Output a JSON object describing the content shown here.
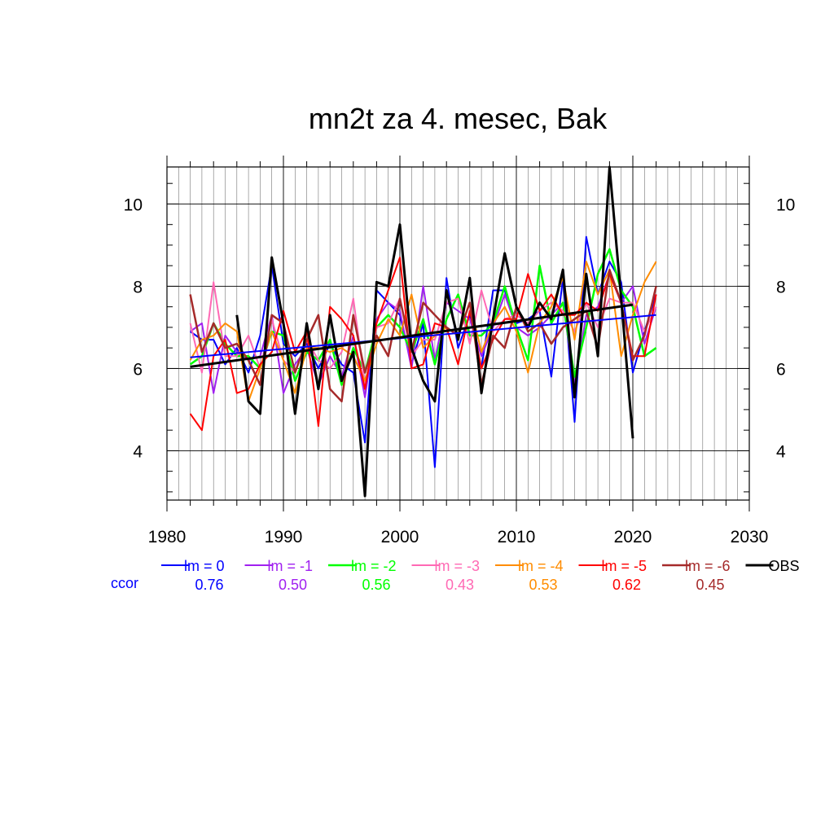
{
  "chart_data": {
    "type": "line",
    "title": "mn2t za 4. mesec, Bak",
    "xlabel": "",
    "ylabel": "",
    "xlim": [
      1980,
      2030
    ],
    "ylim": [
      2.8,
      10.9
    ],
    "x_ticks": [
      1980,
      1990,
      2000,
      2010,
      2020,
      2030
    ],
    "y_ticks": [
      4,
      6,
      8,
      10
    ],
    "grid": true,
    "x": [
      1982,
      1983,
      1984,
      1985,
      1986,
      1987,
      1988,
      1989,
      1990,
      1991,
      1992,
      1993,
      1994,
      1995,
      1996,
      1997,
      1998,
      1999,
      2000,
      2001,
      2002,
      2003,
      2004,
      2005,
      2006,
      2007,
      2008,
      2009,
      2010,
      2011,
      2012,
      2013,
      2014,
      2015,
      2016,
      2017,
      2018,
      2019,
      2020,
      2021,
      2022
    ],
    "series": [
      {
        "name": "lm = 0",
        "color": "#0000ff",
        "width": 2,
        "values": [
          6.9,
          6.7,
          6.7,
          6.1,
          6.5,
          5.9,
          6.8,
          8.5,
          6.6,
          6.3,
          6.6,
          6.0,
          6.6,
          6.1,
          5.9,
          4.2,
          7.9,
          7.6,
          7.3,
          6.1,
          7.1,
          3.6,
          8.2,
          6.5,
          7.3,
          6.0,
          7.9,
          7.9,
          7.1,
          7.2,
          7.4,
          5.8,
          8.2,
          4.7,
          9.2,
          7.8,
          8.6,
          8.1,
          5.9,
          6.9,
          7.8
        ]
      },
      {
        "name": "lm = -1",
        "color": "#a020f0",
        "width": 2,
        "values": [
          6.9,
          7.1,
          5.4,
          6.8,
          6.4,
          6.2,
          6.3,
          7.3,
          5.4,
          6.1,
          6.5,
          5.6,
          6.3,
          5.8,
          6.8,
          5.3,
          7.2,
          7.6,
          7.4,
          6.0,
          8.0,
          6.2,
          7.6,
          7.4,
          7.2,
          6.3,
          7.0,
          7.8,
          7.0,
          6.8,
          7.0,
          7.3,
          7.6,
          5.6,
          7.3,
          7.5,
          8.3,
          7.6,
          8.0,
          6.6,
          7.5
        ]
      },
      {
        "name": "lm = -2",
        "color": "#00ff00",
        "width": 2.5,
        "values": [
          6.1,
          6.3,
          7.1,
          6.6,
          6.3,
          6.3,
          6.0,
          6.9,
          6.8,
          5.7,
          6.4,
          6.2,
          6.7,
          5.6,
          6.5,
          5.9,
          7.0,
          7.3,
          7.0,
          6.4,
          7.2,
          6.1,
          7.2,
          7.8,
          6.8,
          6.8,
          7.1,
          8.0,
          7.0,
          6.2,
          8.5,
          7.1,
          7.6,
          5.8,
          7.0,
          8.3,
          8.9,
          7.9,
          7.5,
          6.3,
          6.5
        ]
      },
      {
        "name": "lm = -3",
        "color": "#ff69b4",
        "width": 2,
        "values": [
          7.1,
          5.9,
          8.1,
          6.3,
          6.3,
          6.8,
          6.0,
          7.2,
          6.2,
          5.9,
          6.7,
          6.2,
          6.0,
          6.4,
          7.7,
          5.6,
          7.0,
          7.1,
          7.7,
          6.3,
          6.7,
          6.7,
          7.6,
          7.7,
          6.6,
          7.9,
          6.9,
          7.2,
          7.3,
          7.1,
          7.4,
          7.6,
          7.4,
          6.9,
          7.6,
          7.0,
          7.7,
          7.6,
          7.6,
          6.9,
          7.5
        ]
      },
      {
        "name": "lm = -4",
        "color": "#ff8c00",
        "width": 2,
        "values": [
          6.2,
          6.7,
          6.8,
          7.1,
          6.9,
          5.2,
          6.0,
          6.9,
          6.2,
          5.4,
          6.5,
          6.5,
          6.4,
          6.5,
          6.3,
          5.7,
          6.6,
          7.2,
          6.8,
          7.8,
          6.5,
          6.8,
          7.0,
          6.8,
          7.6,
          6.4,
          7.1,
          7.5,
          6.9,
          5.9,
          7.1,
          7.5,
          8.2,
          6.7,
          8.6,
          7.8,
          8.4,
          6.3,
          7.3,
          8.1,
          8.6
        ]
      },
      {
        "name": "lm = -5",
        "color": "#ff0000",
        "width": 2,
        "values": [
          4.9,
          4.5,
          6.3,
          6.7,
          5.4,
          5.5,
          6.1,
          6.4,
          7.4,
          6.4,
          6.9,
          4.6,
          7.5,
          7.2,
          6.8,
          5.5,
          7.1,
          7.9,
          8.7,
          6.0,
          6.1,
          7.1,
          7.0,
          6.1,
          7.4,
          6.0,
          6.7,
          7.2,
          7.2,
          8.3,
          7.4,
          7.8,
          7.3,
          7.3,
          7.6,
          7.4,
          8.3,
          7.6,
          6.3,
          6.3,
          7.8
        ]
      },
      {
        "name": "lm = -6",
        "color": "#a52a2a",
        "width": 2.5,
        "values": [
          7.8,
          6.4,
          7.1,
          6.5,
          6.6,
          6.2,
          5.6,
          7.3,
          7.1,
          5.9,
          6.7,
          7.3,
          5.5,
          5.2,
          7.3,
          5.9,
          6.8,
          6.3,
          7.7,
          6.4,
          7.6,
          7.3,
          7.0,
          6.8,
          7.6,
          5.6,
          6.8,
          6.5,
          7.5,
          6.9,
          7.1,
          6.6,
          7.0,
          7.2,
          7.4,
          6.5,
          8.4,
          7.6,
          6.2,
          6.8,
          8.0
        ]
      },
      {
        "name": "OBS",
        "color": "#000000",
        "width": 3,
        "values": [
          null,
          null,
          null,
          null,
          7.3,
          5.2,
          4.9,
          8.7,
          7.1,
          4.9,
          7.1,
          5.5,
          7.3,
          5.7,
          6.4,
          2.9,
          8.1,
          8.0,
          9.5,
          6.5,
          5.7,
          5.2,
          7.9,
          6.7,
          8.2,
          5.4,
          7.2,
          8.8,
          7.5,
          7.0,
          7.6,
          7.2,
          8.4,
          5.3,
          8.3,
          6.3,
          10.9,
          7.7,
          4.3,
          null,
          null
        ]
      }
    ],
    "trend_lines": [
      {
        "name": "lm = 0",
        "color": "#0000ff",
        "width": 2,
        "x": [
          1982,
          2022
        ],
        "y": [
          6.27,
          7.3
        ]
      },
      {
        "name": "OBS",
        "color": "#000000",
        "width": 3,
        "x": [
          1982,
          2020
        ],
        "y": [
          6.04,
          7.55
        ]
      }
    ],
    "legend_placement": "bottom",
    "ccor": {
      "label": "ccor",
      "values": [
        "0.76",
        "0.50",
        "0.56",
        "0.43",
        "0.53",
        "0.62",
        "0.45"
      ]
    }
  }
}
